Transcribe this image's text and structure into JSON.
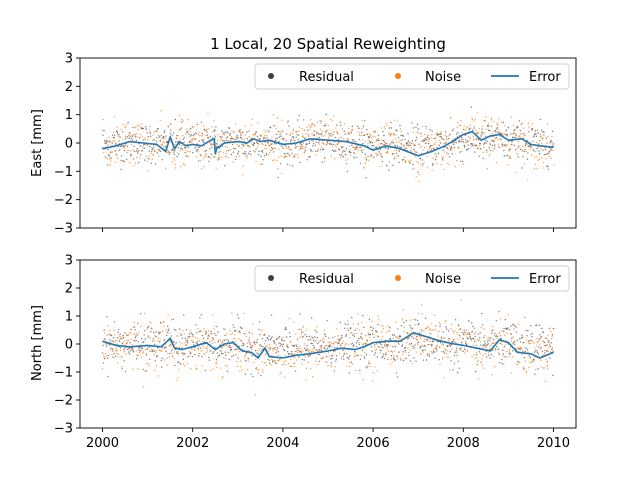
{
  "colors": {
    "residual": "#404040",
    "noise": "#ff7f0e",
    "error": "#1f77b4",
    "spine": "#000000",
    "legend_border": "#cccccc"
  },
  "chart_data": {
    "type": "scatter",
    "title": "1 Local, 20 Spatial Reweighting",
    "xlim": [
      1999.5,
      2010.5
    ],
    "x_ticks": [
      2000,
      2002,
      2004,
      2006,
      2008,
      2010
    ],
    "x_tick_labels": [
      "2000",
      "2002",
      "2004",
      "2006",
      "2008",
      "2010"
    ],
    "legend": {
      "position": "top-right",
      "entries": [
        "Residual",
        "Noise",
        "Error"
      ]
    },
    "panels": [
      {
        "name": "east",
        "ylabel": "East [mm]",
        "ylim": [
          -3,
          3
        ],
        "y_ticks": [
          -3,
          -2,
          -1,
          0,
          1,
          2,
          3
        ],
        "y_tick_labels": [
          "−3",
          "−2",
          "−1",
          "0",
          "1",
          "2",
          "3"
        ],
        "scatter_spread_mm": {
          "residual": 0.35,
          "noise": 0.4
        },
        "series": [
          {
            "name": "Error",
            "type": "line",
            "x": [
              2000.0,
              2000.3,
              2000.6,
              2000.9,
              2001.2,
              2001.4,
              2001.5,
              2001.6,
              2001.7,
              2001.85,
              2002.0,
              2002.2,
              2002.4,
              2002.48,
              2002.5,
              2002.53,
              2002.7,
              2003.0,
              2003.2,
              2003.35,
              2003.5,
              2003.7,
              2004.0,
              2004.3,
              2004.6,
              2005.0,
              2005.4,
              2005.8,
              2006.0,
              2006.3,
              2006.6,
              2007.0,
              2007.3,
              2007.6,
              2007.8,
              2008.0,
              2008.2,
              2008.4,
              2008.6,
              2008.8,
              2009.0,
              2009.3,
              2009.5,
              2009.7,
              2010.0
            ],
            "y": [
              -0.2,
              -0.1,
              0.05,
              0.0,
              -0.05,
              -0.3,
              0.2,
              -0.2,
              0.05,
              -0.1,
              -0.05,
              -0.1,
              0.1,
              0.15,
              -0.4,
              -0.2,
              0.0,
              0.05,
              0.0,
              0.15,
              0.05,
              0.1,
              -0.05,
              0.0,
              0.15,
              0.1,
              0.05,
              -0.1,
              -0.25,
              -0.1,
              -0.2,
              -0.45,
              -0.3,
              -0.1,
              0.1,
              0.3,
              0.4,
              0.1,
              0.25,
              0.3,
              0.1,
              0.15,
              -0.05,
              -0.1,
              -0.15
            ]
          },
          {
            "name": "Residual",
            "type": "scatter"
          },
          {
            "name": "Noise",
            "type": "scatter"
          }
        ]
      },
      {
        "name": "north",
        "ylabel": "North [mm]",
        "ylim": [
          -3,
          3
        ],
        "y_ticks": [
          -3,
          -2,
          -1,
          0,
          1,
          2,
          3
        ],
        "y_tick_labels": [
          "−3",
          "−2",
          "−1",
          "0",
          "1",
          "2",
          "3"
        ],
        "scatter_spread_mm": {
          "residual": 0.4,
          "noise": 0.45
        },
        "series": [
          {
            "name": "Error",
            "type": "line",
            "x": [
              2000.0,
              2000.3,
              2000.6,
              2001.0,
              2001.3,
              2001.5,
              2001.6,
              2001.75,
              2002.0,
              2002.3,
              2002.5,
              2002.7,
              2002.9,
              2003.1,
              2003.3,
              2003.45,
              2003.6,
              2003.7,
              2004.0,
              2004.3,
              2004.6,
              2005.0,
              2005.3,
              2005.6,
              2005.8,
              2006.0,
              2006.3,
              2006.6,
              2006.9,
              2007.2,
              2007.5,
              2007.8,
              2008.0,
              2008.3,
              2008.6,
              2008.8,
              2009.0,
              2009.2,
              2009.5,
              2009.7,
              2010.0
            ],
            "y": [
              0.1,
              -0.05,
              -0.1,
              -0.05,
              -0.1,
              0.2,
              -0.15,
              -0.2,
              -0.1,
              0.05,
              -0.2,
              0.0,
              0.05,
              -0.25,
              -0.3,
              -0.5,
              -0.15,
              -0.45,
              -0.5,
              -0.4,
              -0.35,
              -0.25,
              -0.15,
              -0.2,
              -0.1,
              0.05,
              0.1,
              0.1,
              0.4,
              0.25,
              0.1,
              0.0,
              -0.05,
              -0.15,
              -0.25,
              0.15,
              0.05,
              -0.3,
              -0.35,
              -0.5,
              -0.3
            ]
          },
          {
            "name": "Residual",
            "type": "scatter"
          },
          {
            "name": "Noise",
            "type": "scatter"
          }
        ]
      }
    ]
  }
}
